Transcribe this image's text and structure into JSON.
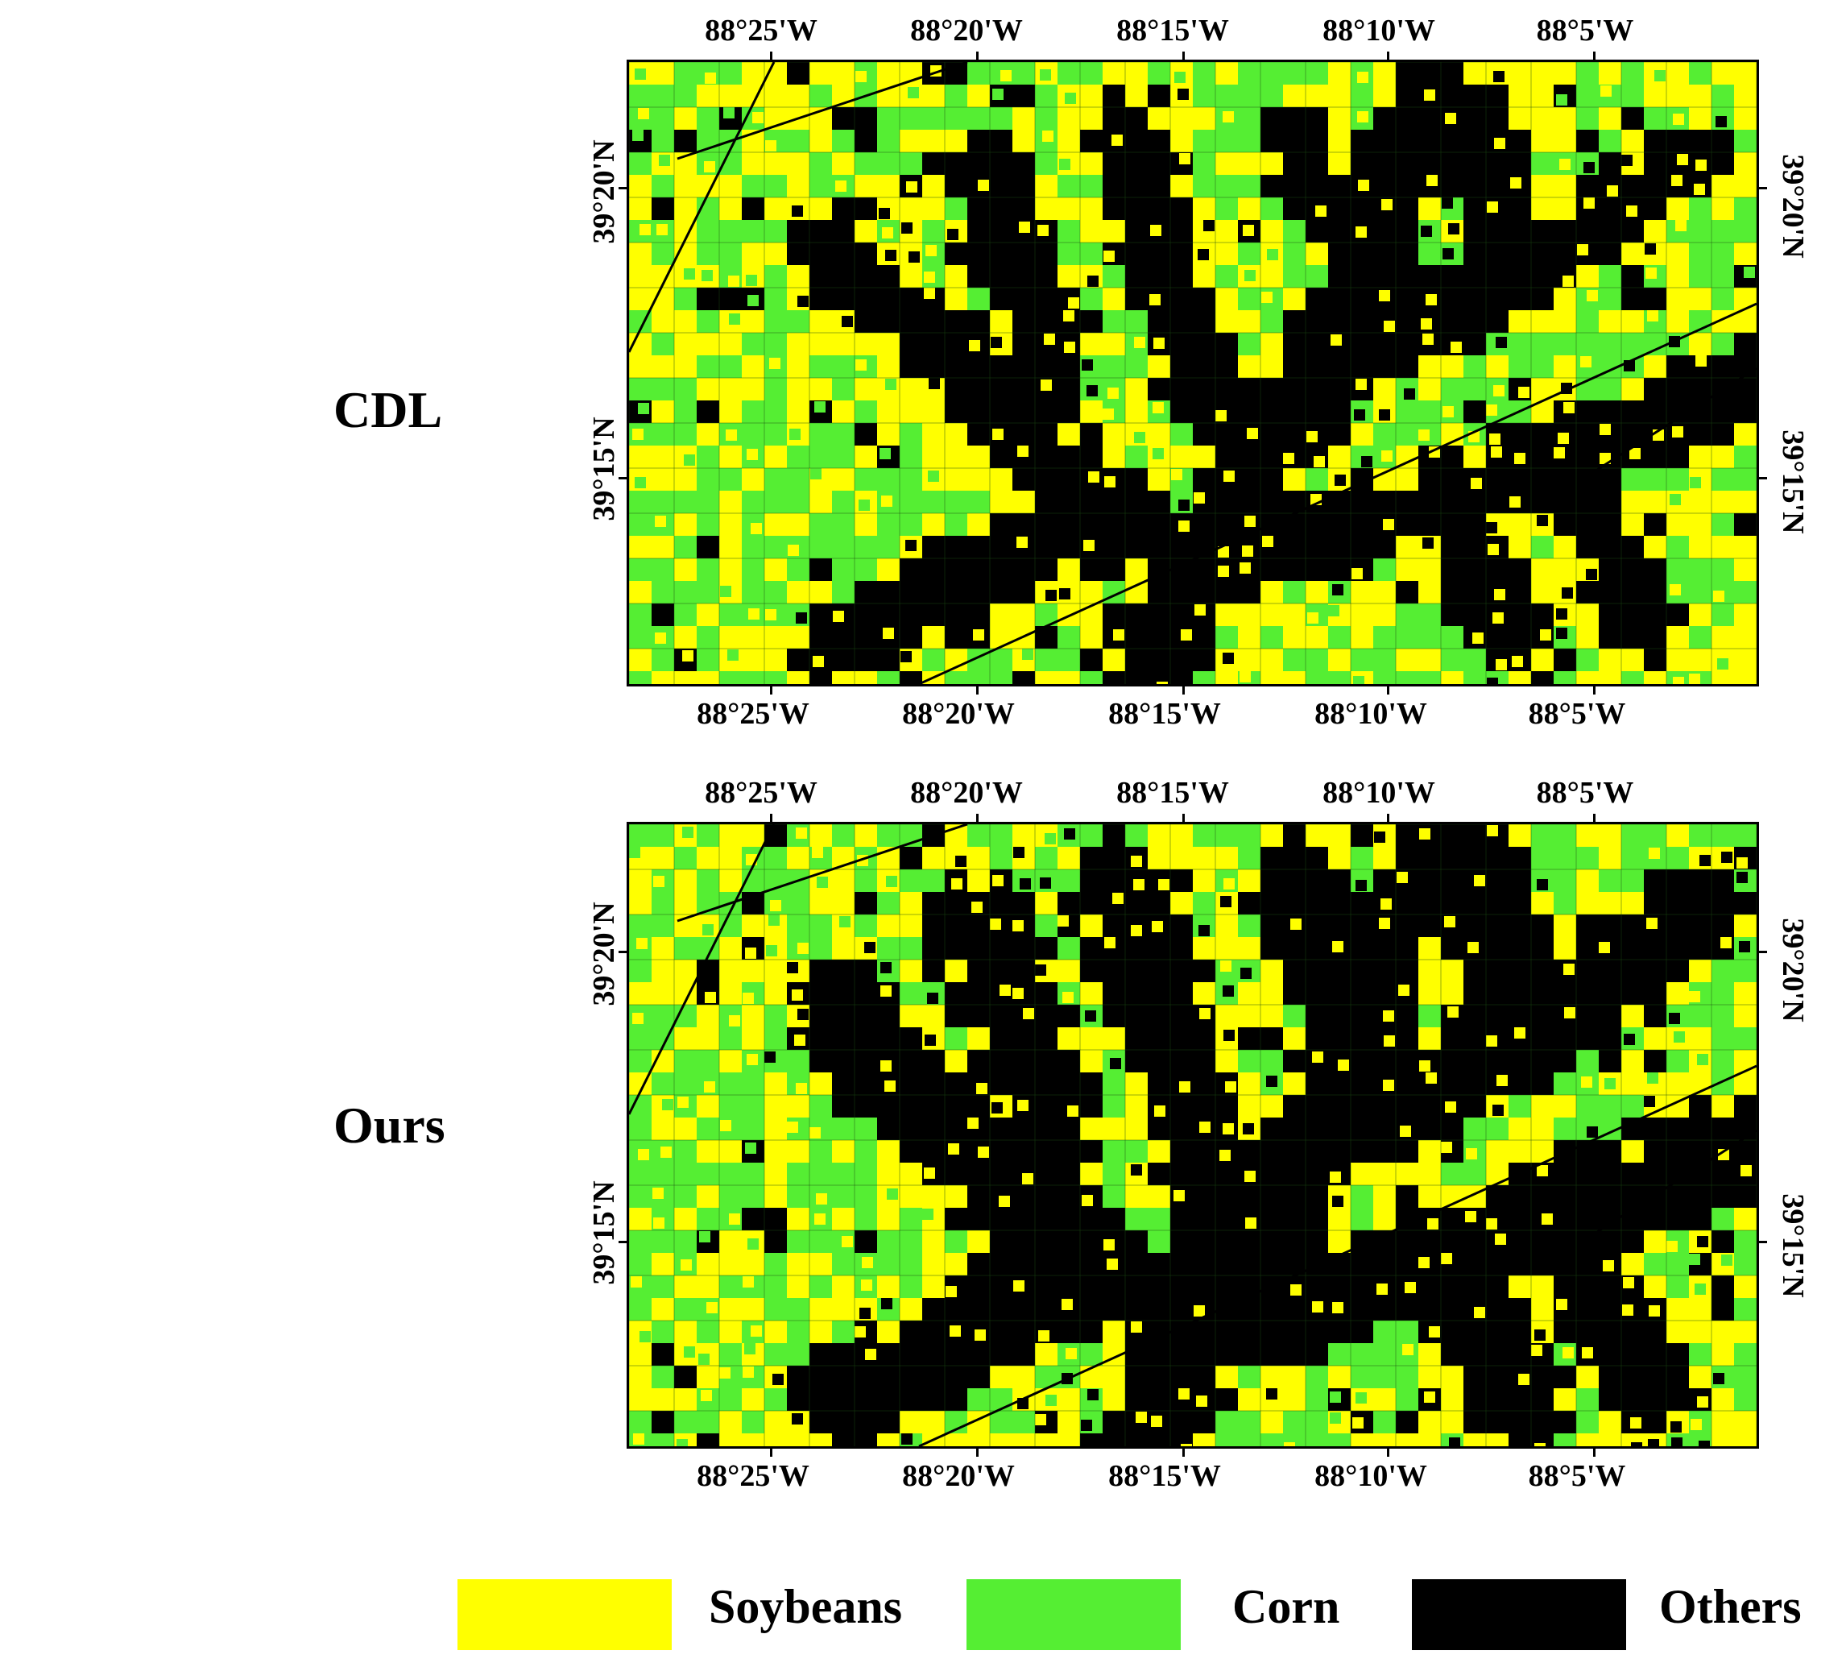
{
  "panels": [
    {
      "label": "CDL"
    },
    {
      "label": "Ours"
    }
  ],
  "axes": {
    "top_lon_ticks": [
      "88°25'W",
      "88°20'W",
      "88°15'W",
      "88°10'W",
      "88°5'W"
    ],
    "bottom_lon_ticks": [
      "88°25'W",
      "88°20'W",
      "88°15'W",
      "88°10'W",
      "88°5'W"
    ],
    "left_lat_ticks": [
      "39°20'N",
      "39°15'N"
    ],
    "right_lat_ticks": [
      "39°20'N",
      "39°15'N"
    ]
  },
  "legend": [
    {
      "label": "Soybeans",
      "color": "#ffff00"
    },
    {
      "label": "Corn",
      "color": "#55ee33"
    },
    {
      "label": "Others",
      "color": "#000000"
    }
  ],
  "colors": {
    "soybeans": "#ffff00",
    "corn": "#55ee33",
    "others": "#000000"
  }
}
